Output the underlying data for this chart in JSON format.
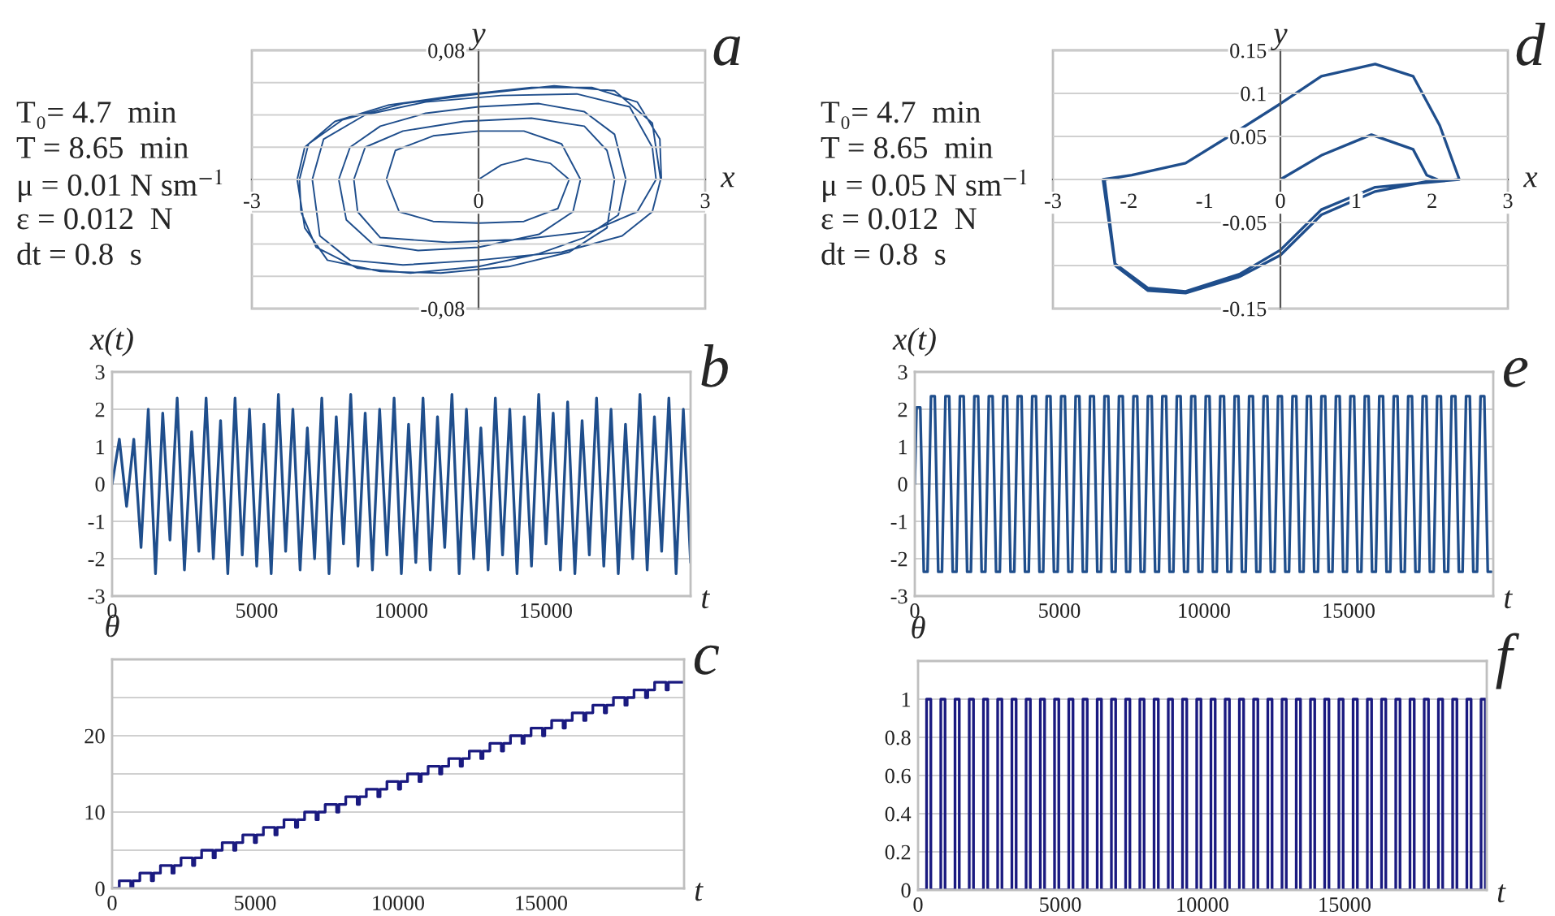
{
  "chart_data": [
    {
      "type": "line",
      "title": "a",
      "xlabel": "x",
      "ylabel": "y",
      "annotations": [
        "T₀= 4.7  min",
        "T = 8.65  min",
        "μ = 0.01 N sm$^{−1}$",
        "ε = 0.012  N",
        "dt = 0.8  s"
      ],
      "xlim": [
        -3,
        3
      ],
      "ylim": [
        -0.08,
        0.08
      ],
      "xticks": [
        -3,
        0,
        3
      ],
      "yticks": [
        {
          "value": -0.08,
          "label": "-0,08"
        },
        {
          "value": -0.06,
          "label": null
        },
        {
          "value": -0.04,
          "label": null
        },
        {
          "value": -0.02,
          "label": null
        },
        {
          "value": 0,
          "label": null
        },
        {
          "value": 0.02,
          "label": null
        },
        {
          "value": 0.04,
          "label": null
        },
        {
          "value": 0.06,
          "label": null
        },
        {
          "value": 0.08,
          "label": "0,08"
        }
      ],
      "grid": "y",
      "series": [
        {
          "color": "#1f4e8c",
          "x": [
            0,
            0.3,
            0.63,
            0.95,
            1.2,
            1.05,
            0.6,
            0,
            -0.6,
            -1.05,
            -1.22,
            -1.1,
            -0.6,
            0,
            0.6,
            1.1,
            1.35,
            1.25,
            0.8,
            0,
            -0.8,
            -1.4,
            -1.75,
            -1.85,
            -1.7,
            -1.3,
            -0.7,
            0,
            0.8,
            1.4,
            1.8,
            1.95,
            1.85,
            1.4,
            0.8,
            0,
            -0.9,
            -1.6,
            -2.15,
            -2.35,
            -2.37,
            -2.25,
            -1.8,
            -1,
            0,
            1,
            1.8,
            2.3,
            2.41,
            2.3,
            1.9,
            1.1,
            0,
            -1,
            -1.7,
            -2.1,
            -2.2,
            -2.05,
            -1.5,
            -0.7,
            0.3,
            1.3,
            2,
            2.3,
            2.35,
            2.1,
            1.5,
            0.6,
            -0.4,
            -1.3,
            -1.6,
            -1.65,
            -1.5,
            -1,
            -0.2,
            0.7,
            1.4,
            1.7,
            1.8,
            1.7,
            1.2,
            0.4,
            -0.5,
            -1.3,
            -2,
            -2.3,
            -2.4,
            -2.3,
            -1.9,
            -1.2,
            -0.3,
            0.7,
            1.5,
            2.1,
            2.4,
            2.42
          ],
          "values": [
            0,
            0.009,
            0.013,
            0.01,
            0,
            -0.018,
            -0.026,
            -0.027,
            -0.026,
            -0.02,
            0,
            0.018,
            0.027,
            0.03,
            0.03,
            0.022,
            0,
            -0.02,
            -0.034,
            -0.042,
            -0.044,
            -0.04,
            -0.025,
            0,
            0.02,
            0.033,
            0.041,
            0.045,
            0.047,
            0.042,
            0.028,
            0,
            -0.022,
            -0.036,
            -0.046,
            -0.054,
            -0.058,
            -0.055,
            -0.042,
            -0.02,
            0,
            0.022,
            0.037,
            0.047,
            0.053,
            0.058,
            0.055,
            0.035,
            0,
            -0.02,
            -0.035,
            -0.045,
            -0.05,
            -0.053,
            -0.05,
            -0.035,
            0,
            0.025,
            0.04,
            0.048,
            0.052,
            0.053,
            0.045,
            0.02,
            0,
            -0.02,
            -0.032,
            -0.037,
            -0.039,
            -0.036,
            -0.02,
            0,
            0.02,
            0.03,
            0.036,
            0.038,
            0.033,
            0.018,
            0,
            -0.03,
            -0.045,
            -0.054,
            -0.058,
            -0.057,
            -0.05,
            -0.03,
            0,
            0.02,
            0.036,
            0.046,
            0.052,
            0.057,
            0.057,
            0.048,
            0.025,
            0
          ]
        }
      ]
    },
    {
      "type": "line",
      "title": "d",
      "xlabel": "x",
      "ylabel": "y",
      "annotations": [
        "T₀= 4.7  min",
        "T = 8.65  min",
        "μ = 0.05 N sm$^{−1}$",
        "ε = 0.012  N",
        "dt = 0.8  s"
      ],
      "xlim": [
        -3,
        3
      ],
      "ylim": [
        -0.15,
        0.15
      ],
      "xticks": [
        -3,
        -2,
        -1,
        0,
        1,
        2,
        3
      ],
      "yticks": [
        -0.15,
        {
          "value": -0.1,
          "label": null
        },
        -0.05,
        {
          "value": 0,
          "label": null
        },
        0.05,
        0.1,
        0.15
      ],
      "grid": "y",
      "series": [
        {
          "color": "#1f4e8c",
          "x": [
            0,
            0.54,
            1.2,
            1.75,
            1.93,
            2.07,
            1.25,
            0.54,
            0,
            -0.54,
            -1.25,
            -1.75,
            -2.18,
            -2.34,
            -1.96,
            -1.25,
            -0.68,
            0,
            0.54,
            1.25,
            1.75,
            2.1,
            2.36,
            1.25,
            0.54,
            0,
            -0.54,
            -1.25,
            -1.75,
            -2.18,
            -2.32,
            -1.96,
            -1.25,
            -0.68,
            0,
            0.54,
            1.25,
            1.75,
            2.1,
            2.36
          ],
          "values": [
            0,
            0.028,
            0.052,
            0.035,
            0.005,
            0,
            -0.014,
            -0.041,
            -0.088,
            -0.113,
            -0.132,
            -0.129,
            -0.1,
            0,
            0.005,
            0.019,
            0.05,
            0.088,
            0.12,
            0.134,
            0.12,
            0.063,
            0,
            -0.009,
            -0.035,
            -0.082,
            -0.11,
            -0.13,
            -0.126,
            -0.098,
            0,
            0.005,
            0.019,
            0.05,
            0.088,
            0.12,
            0.134,
            0.12,
            0.063,
            0
          ]
        }
      ]
    },
    {
      "type": "line",
      "title": "b",
      "xlabel": "t",
      "ylabel": "x(t)",
      "xlim": [
        0,
        20000
      ],
      "ylim": [
        -3,
        3
      ],
      "xticks": [
        0,
        5000,
        10000,
        15000
      ],
      "yticks": [
        -3,
        -2,
        -1,
        0,
        1,
        2,
        3
      ],
      "grid": "y",
      "series": [
        {
          "color": "#1f4e8c",
          "x": [
            0,
            250,
            500,
            750,
            1000,
            1250,
            1500,
            1750,
            2000,
            2250,
            2500,
            2750,
            3000,
            3250,
            3500,
            3750,
            4000,
            4250,
            4500,
            4750,
            5000,
            5250,
            5500,
            5750,
            6000,
            6250,
            6500,
            6750,
            7000,
            7250,
            7500,
            7750,
            8000,
            8250,
            8500,
            8750,
            9000,
            9250,
            9500,
            9750,
            10000,
            10250,
            10500,
            10750,
            11000,
            11250,
            11500,
            11750,
            12000,
            12250,
            12500,
            12750,
            13000,
            13250,
            13500,
            13750,
            14000,
            14250,
            14500,
            14750,
            15000,
            15250,
            15500,
            15750,
            16000,
            16250,
            16500,
            16750,
            17000,
            17250,
            17500,
            17750,
            18000,
            18250,
            18500,
            18750,
            19000,
            19250,
            19500,
            19750,
            20000
          ],
          "values": [
            0,
            1.2,
            -0.6,
            1.2,
            -1.7,
            2.0,
            -2.4,
            1.9,
            -1.5,
            2.3,
            -2.3,
            1.4,
            -1.8,
            2.3,
            -2.0,
            1.7,
            -2.4,
            2.3,
            -1.9,
            2.0,
            -2.2,
            1.6,
            -2.4,
            2.4,
            -1.8,
            2.0,
            -2.3,
            1.5,
            -2.0,
            2.3,
            -2.4,
            1.8,
            -1.6,
            2.4,
            -2.2,
            1.9,
            -2.3,
            2.0,
            -1.9,
            2.3,
            -2.4,
            1.6,
            -2.1,
            2.3,
            -2.3,
            1.8,
            -1.7,
            2.4,
            -2.4,
            2.0,
            -2.0,
            1.5,
            -2.3,
            2.3,
            -1.9,
            2.0,
            -2.4,
            1.8,
            -2.2,
            2.4,
            -1.6,
            1.9,
            -2.3,
            2.2,
            -2.4,
            1.7,
            -1.9,
            2.3,
            -2.2,
            2.0,
            -2.4,
            1.6,
            -2.0,
            2.4,
            -2.3,
            1.8,
            -1.8,
            2.3,
            -2.4,
            2.0,
            -2.1
          ]
        }
      ]
    },
    {
      "type": "line",
      "title": "e",
      "xlabel": "t",
      "ylabel": "x(t)",
      "xlim": [
        0,
        20000
      ],
      "ylim": [
        -3,
        3
      ],
      "xticks": [
        0,
        5000,
        10000,
        15000
      ],
      "yticks": [
        -3,
        -2,
        -1,
        0,
        1,
        2,
        3
      ],
      "grid": "y",
      "series": [
        {
          "color": "#1f4e8c",
          "x": [
            0,
            60,
            190,
            310,
            440,
            560,
            690,
            810,
            940,
            1060,
            1190,
            1310,
            1440,
            1560,
            1690,
            1810,
            1940,
            2060,
            2190,
            2310,
            2440,
            2560,
            2690,
            2810,
            2940,
            3060,
            3190,
            3310,
            3440,
            3560,
            3690,
            3810,
            3940,
            4060,
            4190,
            4310,
            4440,
            4560,
            4690,
            4810,
            4940,
            5060,
            5190,
            5310,
            5440,
            5560,
            5690,
            5810,
            5940,
            6060,
            6190,
            6310,
            6440,
            6560,
            6690,
            6810,
            6940,
            7060,
            7190,
            7310,
            7440,
            7560,
            7690,
            7810,
            7940,
            8060,
            8190,
            8310,
            8440,
            8560,
            8690,
            8810,
            8940,
            9060,
            9190,
            9310,
            9440,
            9560,
            9690,
            9810,
            9940,
            10060,
            10190,
            10310,
            10440,
            10560,
            10690,
            10810,
            10940,
            11060,
            11190,
            11310,
            11440,
            11560,
            11690,
            11810,
            11940,
            12060,
            12190,
            12310,
            12440,
            12560,
            12690,
            12810,
            12940,
            13060,
            13190,
            13310,
            13440,
            13560,
            13690,
            13810,
            13940,
            14060,
            14190,
            14310,
            14440,
            14560,
            14690,
            14810,
            14940,
            15060,
            15190,
            15310,
            15440,
            15560,
            15690,
            15810,
            15940,
            16060,
            16190,
            16310,
            16440,
            16560,
            16690,
            16810,
            16940,
            17060,
            17190,
            17310,
            17440,
            17560,
            17690,
            17810,
            17940,
            18060,
            18190,
            18310,
            18440,
            18560,
            18690,
            18810,
            18940,
            19060,
            19190,
            19310,
            19440,
            19560,
            19690,
            19810,
            19940
          ],
          "values": [
            0,
            2.05,
            2.05,
            -2.35,
            -2.35,
            2.35,
            2.35,
            -2.35,
            -2.35,
            2.35,
            2.35,
            -2.35,
            -2.35,
            2.35,
            2.35,
            -2.35,
            -2.35,
            2.35,
            2.35,
            -2.35,
            -2.35,
            2.35,
            2.35,
            -2.35,
            -2.35,
            2.35,
            2.35,
            -2.35,
            -2.35,
            2.35,
            2.35,
            -2.35,
            -2.35,
            2.35,
            2.35,
            -2.35,
            -2.35,
            2.35,
            2.35,
            -2.35,
            -2.35,
            2.35,
            2.35,
            -2.35,
            -2.35,
            2.35,
            2.35,
            -2.35,
            -2.35,
            2.35,
            2.35,
            -2.35,
            -2.35,
            2.35,
            2.35,
            -2.35,
            -2.35,
            2.35,
            2.35,
            -2.35,
            -2.35,
            2.35,
            2.35,
            -2.35,
            -2.35,
            2.35,
            2.35,
            -2.35,
            -2.35,
            2.35,
            2.35,
            -2.35,
            -2.35,
            2.35,
            2.35,
            -2.35,
            -2.35,
            2.35,
            2.35,
            -2.35,
            -2.35,
            2.35,
            2.35,
            -2.35,
            -2.35,
            2.35,
            2.35,
            -2.35,
            -2.35,
            2.35,
            2.35,
            -2.35,
            -2.35,
            2.35,
            2.35,
            -2.35,
            -2.35,
            2.35,
            2.35,
            -2.35,
            -2.35,
            2.35,
            2.35,
            -2.35,
            -2.35,
            2.35,
            2.35,
            -2.35,
            -2.35,
            2.35,
            2.35,
            -2.35,
            -2.35,
            2.35,
            2.35,
            -2.35,
            -2.35,
            2.35,
            2.35,
            -2.35,
            -2.35,
            2.35,
            2.35,
            -2.35,
            -2.35,
            2.35,
            2.35,
            -2.35,
            -2.35,
            2.35,
            2.35,
            -2.35,
            -2.35,
            2.35,
            2.35,
            -2.35,
            -2.35,
            2.35,
            2.35,
            -2.35,
            -2.35,
            2.35,
            2.35,
            -2.35,
            -2.35,
            2.35,
            2.35,
            -2.35,
            -2.35,
            2.35,
            2.35,
            -2.35,
            -2.35,
            2.35,
            2.35,
            -2.35,
            -2.35,
            2.35,
            2.35,
            -2.35,
            -2.35
          ]
        }
      ]
    },
    {
      "type": "step",
      "title": "c",
      "xlabel": "t",
      "ylabel": "θ",
      "xlim": [
        0,
        20000
      ],
      "ylim": [
        0,
        30
      ],
      "xticks": [
        0,
        5000,
        10000,
        15000
      ],
      "yticks": [
        0,
        {
          "value": 5,
          "label": null
        },
        10,
        {
          "value": 15,
          "label": null
        },
        20,
        {
          "value": 25,
          "label": null
        },
        {
          "value": 30,
          "label": null
        }
      ],
      "grid": "y",
      "series": [
        {
          "color": "#1a1a80",
          "x": [
            0,
            250,
            650,
            730,
            970,
            1370,
            1450,
            1690,
            2090,
            2170,
            2410,
            2810,
            2890,
            3130,
            3530,
            3610,
            3850,
            4250,
            4330,
            4570,
            4970,
            5050,
            5290,
            5690,
            5770,
            6010,
            6410,
            6490,
            6730,
            7130,
            7210,
            7450,
            7850,
            7930,
            8170,
            8570,
            8650,
            8890,
            9290,
            9370,
            9610,
            10010,
            10090,
            10330,
            10730,
            10810,
            11050,
            11450,
            11530,
            11770,
            12170,
            12250,
            12490,
            12890,
            12970,
            13210,
            13610,
            13690,
            13930,
            14330,
            14410,
            14650,
            15050,
            15130,
            15370,
            15770,
            15850,
            16090,
            16490,
            16570,
            16810,
            17210,
            17290,
            17530,
            17930,
            18010,
            18250,
            18650,
            18730,
            18970,
            19370,
            19450,
            20000
          ],
          "values": [
            0,
            1,
            0,
            1,
            2,
            1,
            2,
            3,
            2,
            3,
            4,
            3,
            4,
            5,
            4,
            5,
            6,
            5,
            6,
            7,
            6,
            7,
            8,
            7,
            8,
            9,
            8,
            9,
            10,
            9,
            10,
            11,
            10,
            11,
            12,
            11,
            12,
            13,
            12,
            13,
            14,
            13,
            14,
            15,
            14,
            15,
            16,
            15,
            16,
            17,
            16,
            17,
            18,
            17,
            18,
            19,
            18,
            19,
            20,
            19,
            20,
            21,
            20,
            21,
            22,
            21,
            22,
            23,
            22,
            23,
            24,
            23,
            24,
            25,
            24,
            25,
            26,
            25,
            26,
            27,
            26,
            27,
            27
          ]
        }
      ]
    },
    {
      "type": "step",
      "title": "f",
      "xlabel": "t",
      "ylabel": "θ",
      "xlim": [
        0,
        20000
      ],
      "ylim": [
        0,
        1.2
      ],
      "xticks": [
        0,
        5000,
        10000,
        15000
      ],
      "yticks": [
        0,
        0.2,
        0.4,
        0.6,
        0.8,
        1,
        {
          "value": 1.2,
          "label": null
        }
      ],
      "grid": "y",
      "series": [
        {
          "color": "#1a1a80",
          "x": [
            0,
            300,
            450,
            800,
            950,
            1300,
            1450,
            1800,
            1950,
            2300,
            2450,
            2800,
            2950,
            3300,
            3450,
            3800,
            3950,
            4300,
            4450,
            4800,
            4950,
            5300,
            5450,
            5800,
            5950,
            6300,
            6450,
            6800,
            6950,
            7300,
            7450,
            7800,
            7950,
            8300,
            8450,
            8800,
            8950,
            9300,
            9450,
            9800,
            9950,
            10300,
            10450,
            10800,
            10950,
            11300,
            11450,
            11800,
            11950,
            12300,
            12450,
            12800,
            12950,
            13300,
            13450,
            13800,
            13950,
            14300,
            14450,
            14800,
            14950,
            15300,
            15450,
            15800,
            15950,
            16300,
            16450,
            16800,
            16950,
            17300,
            17450,
            17800,
            17950,
            18300,
            18450,
            18800,
            18950,
            19300,
            19450,
            19800,
            19950,
            20000
          ],
          "values": [
            0,
            1,
            0,
            1,
            0,
            1,
            0,
            1,
            0,
            1,
            0,
            1,
            0,
            1,
            0,
            1,
            0,
            1,
            0,
            1,
            0,
            1,
            0,
            1,
            0,
            1,
            0,
            1,
            0,
            1,
            0,
            1,
            0,
            1,
            0,
            1,
            0,
            1,
            0,
            1,
            0,
            1,
            0,
            1,
            0,
            1,
            0,
            1,
            0,
            1,
            0,
            1,
            0,
            1,
            0,
            1,
            0,
            1,
            0,
            1,
            0,
            1,
            0,
            1,
            0,
            1,
            0,
            1,
            0,
            1,
            0,
            1,
            0,
            1,
            0,
            1,
            0,
            1,
            0,
            1,
            0,
            0
          ]
        }
      ]
    }
  ]
}
